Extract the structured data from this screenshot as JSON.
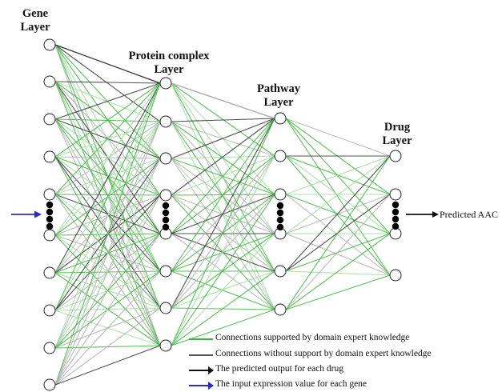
{
  "layers": {
    "gene": {
      "title_line1": "Gene",
      "title_line2": "Layer"
    },
    "protein": {
      "title_line1": "Protein complex",
      "title_line2": "Layer"
    },
    "pathway": {
      "title_line1": "Pathway",
      "title_line2": "Layer"
    },
    "drug": {
      "title_line1": "Drug",
      "title_line2": "Layer"
    }
  },
  "output": {
    "label": "Predicted AAC"
  },
  "legend": [
    {
      "label": "Connections supported by domain expert knowledge",
      "color": "#3cb63c"
    },
    {
      "label": "Connections without support by domain expert knowledge",
      "color": "#555555"
    },
    {
      "label": "The predicted output for each drug",
      "color": "#111111"
    },
    {
      "label": "The input expression value for each gene",
      "color": "#2a2ad0"
    }
  ],
  "colors": {
    "supported_edge": "#3cb63c",
    "supported_edge_light": "#9fdd9f",
    "unsupported_edge": "#333333",
    "unsupported_edge_light": "#b0b0b0",
    "output_arrow": "#111111",
    "input_arrow": "#2a2ad0",
    "node_fill": "#ffffff",
    "node_stroke": "#222222"
  }
}
